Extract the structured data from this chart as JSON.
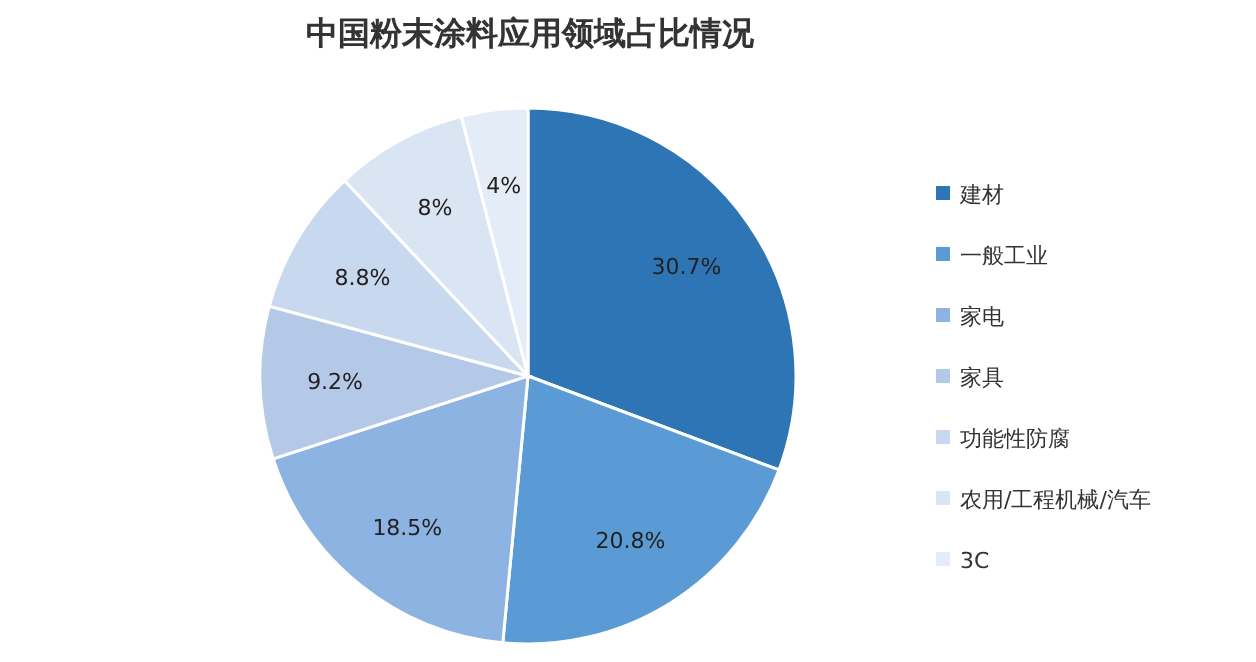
{
  "chart_data": {
    "type": "pie",
    "title": "中国粉末涂料应用领域占比情况",
    "categories": [
      "建材",
      "一般工业",
      "家电",
      "家具",
      "功能性防腐",
      "农用/工程机械/汽车",
      "3C"
    ],
    "values": [
      30.7,
      20.8,
      18.5,
      9.2,
      8.8,
      8,
      4
    ],
    "colors": [
      "#2e75b6",
      "#5b9bd5",
      "#8db3e2",
      "#b4c9e8",
      "#c8d8ee",
      "#d9e5f3",
      "#e3ecf7"
    ],
    "value_labels": [
      "30.7%",
      "20.8%",
      "18.5%",
      "9.2%",
      "8.8%",
      "8%",
      "4%"
    ],
    "legend": "right"
  }
}
